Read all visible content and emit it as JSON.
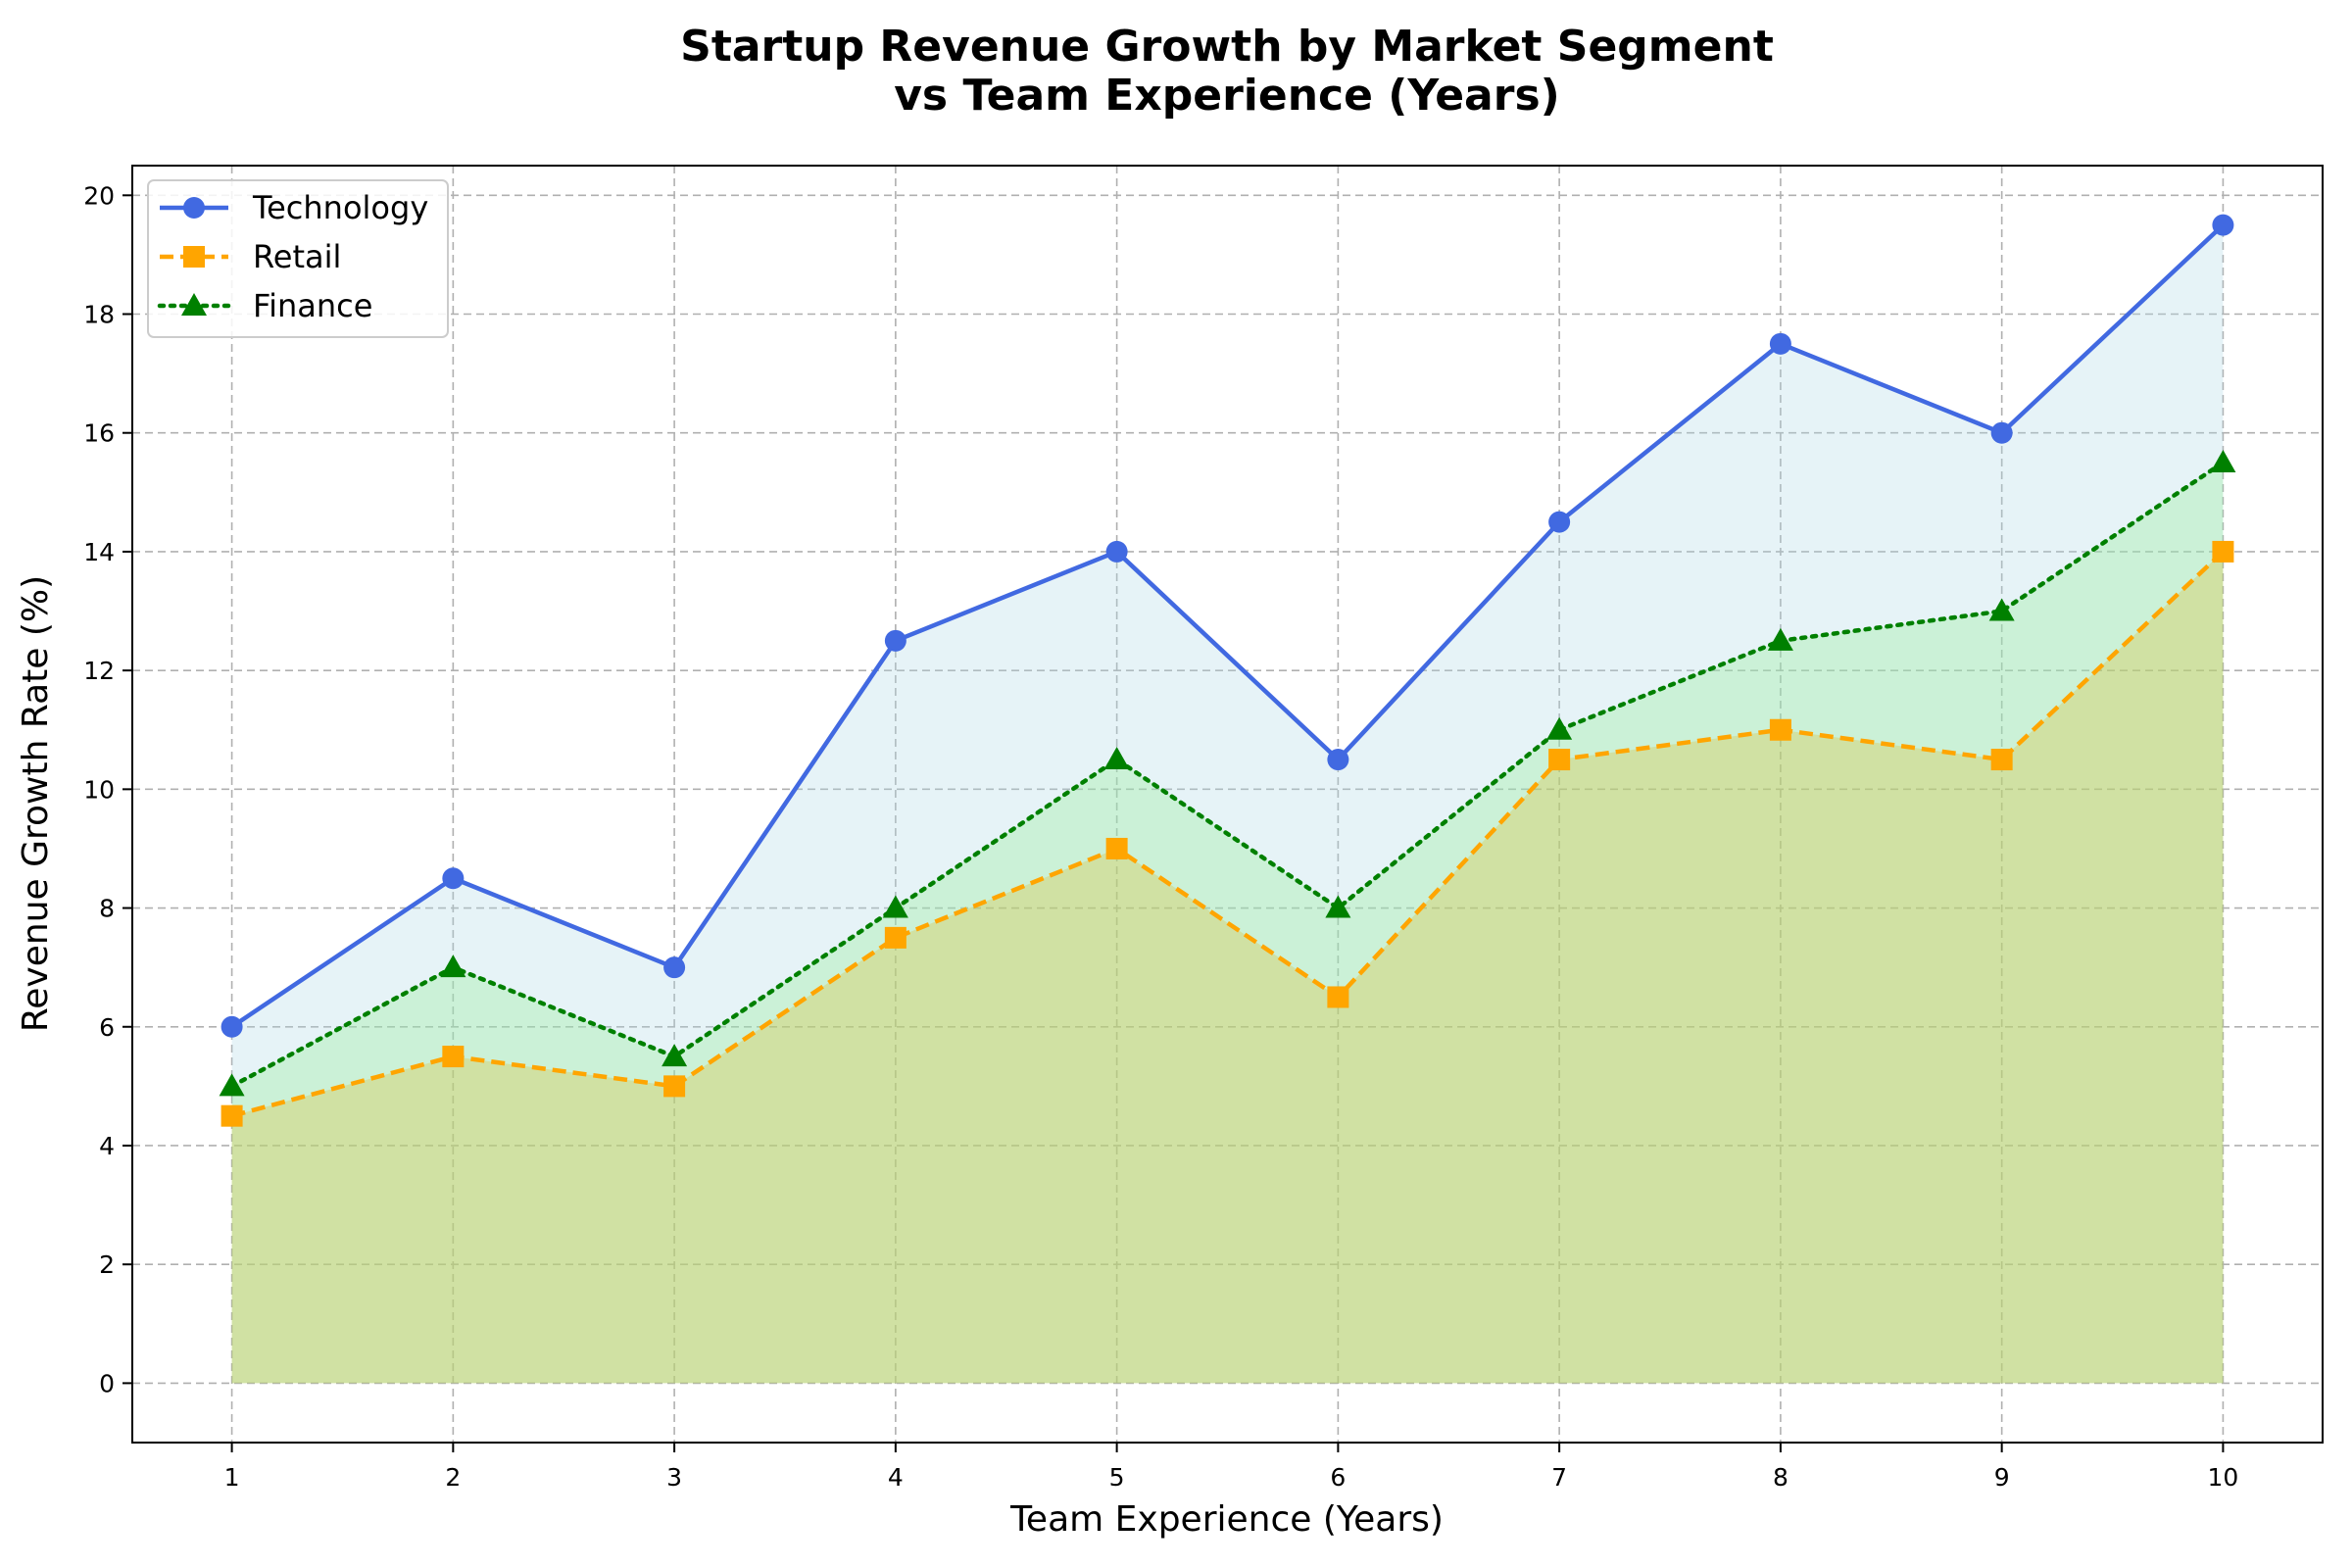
{
  "chart_data": {
    "type": "line",
    "title": "Startup Revenue Growth by Market Segment",
    "subtitle": "vs Team Experience (Years)",
    "xlabel": "Team Experience (Years)",
    "ylabel": "Revenue Growth Rate (%)",
    "x": [
      1,
      2,
      3,
      4,
      5,
      6,
      7,
      8,
      9,
      10
    ],
    "xlim": [
      0.55,
      10.45
    ],
    "ylim": [
      -1,
      20.5
    ],
    "xticks": [
      1,
      2,
      3,
      4,
      5,
      6,
      7,
      8,
      9,
      10
    ],
    "yticks": [
      0,
      2,
      4,
      6,
      8,
      10,
      12,
      14,
      16,
      18,
      20
    ],
    "grid": true,
    "legend_position": "top-left",
    "series": [
      {
        "name": "Technology",
        "values": [
          6,
          8.5,
          7,
          12.5,
          14,
          10.5,
          14.5,
          17.5,
          16,
          19.5
        ],
        "color": "#4169e1",
        "fill": "#add8e6",
        "marker": "circle",
        "line_style": "solid"
      },
      {
        "name": "Retail",
        "values": [
          4.5,
          5.5,
          5,
          7.5,
          9,
          6.5,
          10.5,
          11,
          10.5,
          14
        ],
        "color": "#ffa500",
        "fill": "#ffa500",
        "marker": "square",
        "line_style": "dashed"
      },
      {
        "name": "Finance",
        "values": [
          5,
          7,
          5.5,
          8,
          10.5,
          8,
          11,
          12.5,
          13,
          15.5
        ],
        "color": "#008000",
        "fill": "#90ee90",
        "marker": "triangle",
        "line_style": "dotted"
      }
    ]
  }
}
